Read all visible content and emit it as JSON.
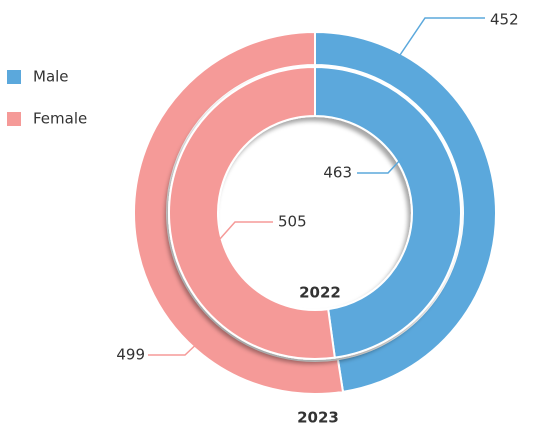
{
  "chart_data": {
    "type": "donut",
    "categories": [
      "Male",
      "Female"
    ],
    "colors": [
      "#5ba8dc",
      "#f59a98"
    ],
    "series": [
      {
        "name": "2023",
        "values": [
          452,
          499
        ]
      },
      {
        "name": "2022",
        "values": [
          463,
          505
        ]
      }
    ],
    "legend": "top-left"
  }
}
